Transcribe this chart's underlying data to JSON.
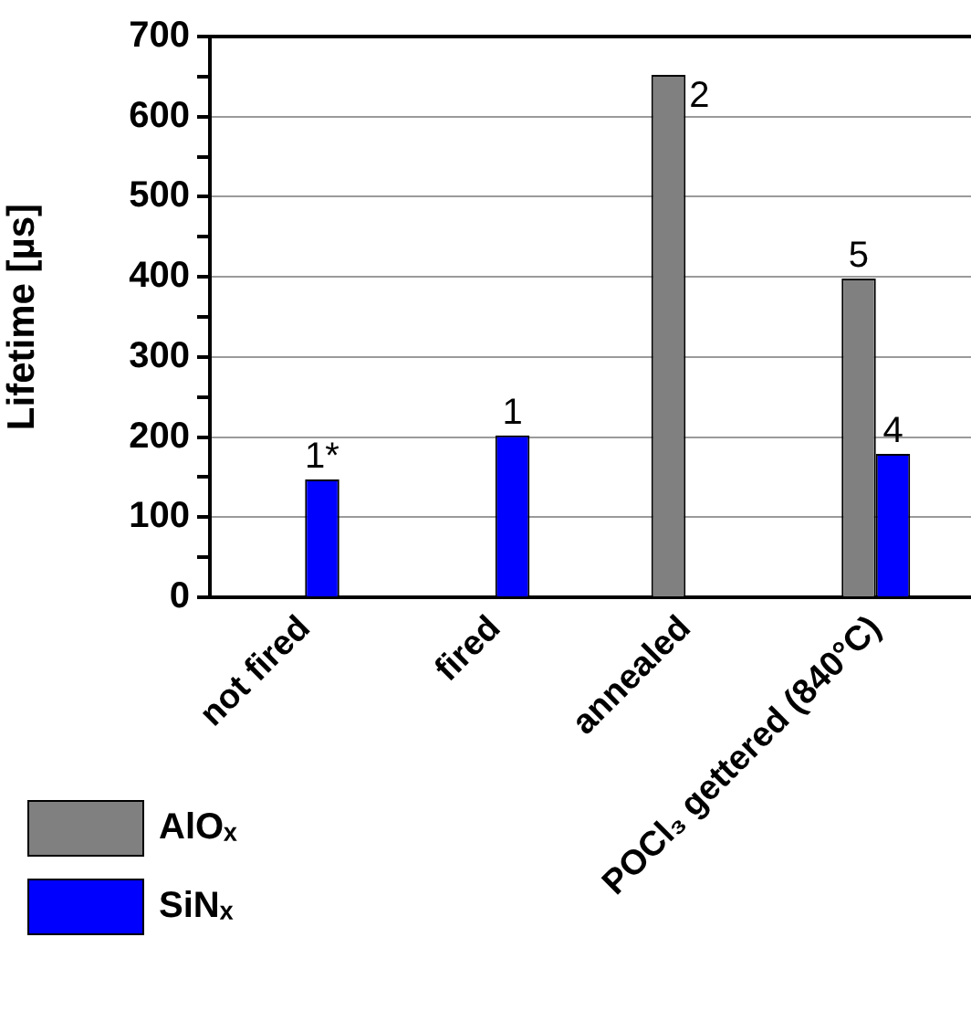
{
  "chart_data": {
    "type": "bar",
    "ylabel": "Lifetime [µs]",
    "categories": [
      "not fired",
      "fired",
      "annealed",
      "POCl₃ gettered (840°C)"
    ],
    "series": [
      {
        "name": "AlOₓ",
        "color": "#808080",
        "values": [
          null,
          null,
          652,
          398
        ]
      },
      {
        "name": "SiNₓ",
        "color": "#0000ff",
        "values": [
          147,
          202,
          null,
          179
        ]
      }
    ],
    "ylim": [
      0,
      700
    ],
    "yticks": [
      0,
      {
        "value": 50,
        "label": null
      },
      100,
      {
        "value": 150,
        "label": null
      },
      200,
      {
        "value": 250,
        "label": null
      },
      300,
      {
        "value": 350,
        "label": null
      },
      400,
      {
        "value": 450,
        "label": null
      },
      500,
      {
        "value": 550,
        "label": null
      },
      600,
      {
        "value": 650,
        "label": null
      },
      700
    ],
    "grid": "y",
    "legend": "bottom left",
    "annotations": [
      {
        "text": "1*",
        "x": "not fired",
        "y": 147
      },
      {
        "text": "1",
        "x": "fired",
        "y": 202
      },
      {
        "text": "2",
        "x": "annealed",
        "y": 652
      },
      {
        "text": "5",
        "x": "POCl₃ gettered (840°C)",
        "y": 398
      },
      {
        "text": "4",
        "x": "POCl₃ gettered (840°C)",
        "y": 179
      }
    ]
  }
}
